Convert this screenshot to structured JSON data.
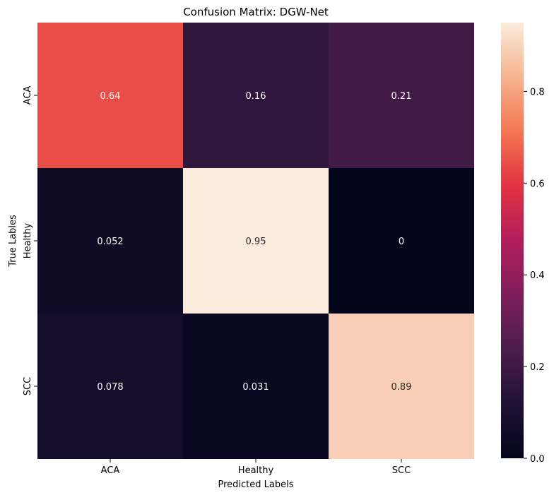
{
  "chart_data": {
    "type": "heatmap",
    "title": "Confusion Matrix: DGW-Net",
    "xlabel": "Predicted Labels",
    "ylabel": "True Lables",
    "x_categories": [
      "ACA",
      "Healthy",
      "SCC"
    ],
    "y_categories": [
      "ACA",
      "Healthy",
      "SCC"
    ],
    "matrix": [
      [
        0.64,
        0.16,
        0.21
      ],
      [
        0.052,
        0.95,
        0
      ],
      [
        0.078,
        0.031,
        0.89
      ]
    ],
    "cell_labels": [
      [
        "0.64",
        "0.16",
        "0.21"
      ],
      [
        "0.052",
        "0.95",
        "0"
      ],
      [
        "0.078",
        "0.031",
        "0.89"
      ]
    ],
    "colorbar": {
      "range": [
        0,
        0.95
      ],
      "ticks": [
        0,
        0.2,
        0.4,
        0.6,
        0.8
      ],
      "tick_labels": [
        "0.0",
        "0.2",
        "0.4",
        "0.6",
        "0.8"
      ]
    },
    "colormap": "rocket",
    "colormap_stops": [
      "#03051a",
      "#1f1234",
      "#4c1d4b",
      "#7e1e5b",
      "#b21e5c",
      "#e13342",
      "#f37651",
      "#f6b48f",
      "#faebdd"
    ]
  }
}
